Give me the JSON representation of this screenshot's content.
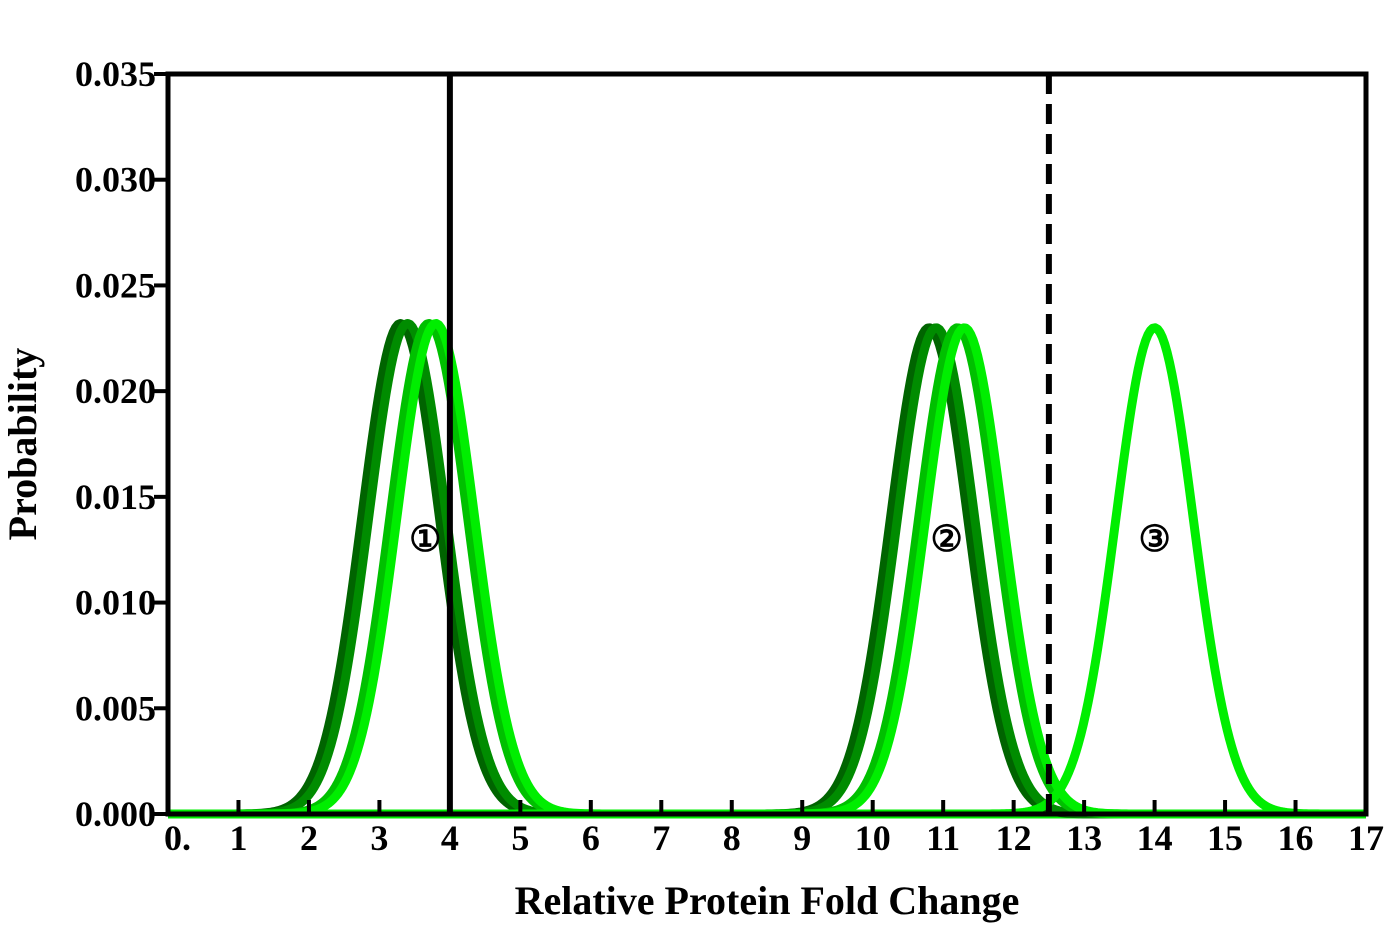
{
  "chart_data": {
    "type": "line",
    "title": "",
    "xlabel": "Relative Protein Fold Change",
    "ylabel": "Probability",
    "xlim": [
      0,
      17
    ],
    "ylim": [
      0,
      0.035
    ],
    "x_ticks": [
      0,
      1,
      2,
      3,
      4,
      5,
      6,
      7,
      8,
      9,
      10,
      11,
      12,
      13,
      14,
      15,
      16,
      17
    ],
    "x_tick_labels": [
      "0.",
      "1",
      "2",
      "3",
      "4",
      "5",
      "6",
      "7",
      "8",
      "9",
      "10",
      "11",
      "12",
      "13",
      "14",
      "15",
      "16",
      "17"
    ],
    "y_ticks": [
      0,
      0.005,
      0.01,
      0.015,
      0.02,
      0.025,
      0.03,
      0.035
    ],
    "y_tick_labels": [
      "0.000",
      "0.005",
      "0.010",
      "0.015",
      "0.020",
      "0.025",
      "0.030",
      "0.035"
    ],
    "grid": false,
    "distribution": "gaussian",
    "series": [
      {
        "mean": 3.3,
        "sd": 0.55,
        "peak": 0.0232,
        "color": "#006400"
      },
      {
        "mean": 3.4,
        "sd": 0.55,
        "peak": 0.0232,
        "color": "#008c00"
      },
      {
        "mean": 3.7,
        "sd": 0.55,
        "peak": 0.0232,
        "color": "#00c000"
      },
      {
        "mean": 3.8,
        "sd": 0.55,
        "peak": 0.0232,
        "color": "#00ee00"
      },
      {
        "mean": 10.8,
        "sd": 0.55,
        "peak": 0.023,
        "color": "#006400"
      },
      {
        "mean": 10.9,
        "sd": 0.55,
        "peak": 0.023,
        "color": "#008c00"
      },
      {
        "mean": 11.2,
        "sd": 0.55,
        "peak": 0.023,
        "color": "#00c000"
      },
      {
        "mean": 11.3,
        "sd": 0.55,
        "peak": 0.023,
        "color": "#00ee00"
      },
      {
        "mean": 14.0,
        "sd": 0.55,
        "peak": 0.023,
        "color": "#00ee00"
      }
    ],
    "vertical_lines": [
      {
        "x": 4.0,
        "style": "solid",
        "color": "#000000"
      },
      {
        "x": 12.5,
        "style": "dashed",
        "color": "#000000"
      }
    ],
    "annotations": [
      {
        "text": "①",
        "x": 3.65,
        "y": 0.013
      },
      {
        "text": "②",
        "x": 11.05,
        "y": 0.013
      },
      {
        "text": "③",
        "x": 14.0,
        "y": 0.013
      }
    ]
  }
}
